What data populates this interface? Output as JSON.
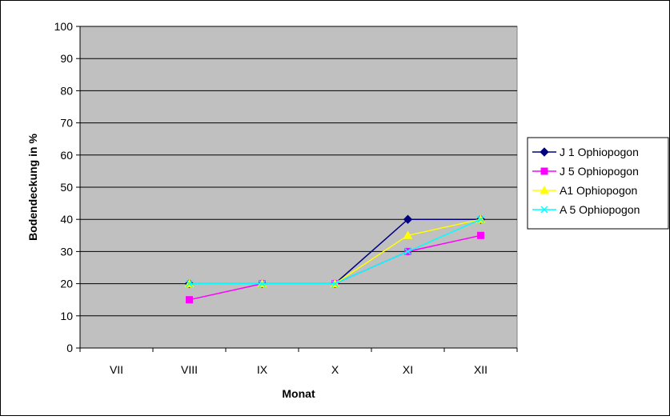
{
  "chart_data": {
    "type": "line",
    "title": "",
    "xlabel": "Monat",
    "ylabel": "Bodendeckung in %",
    "categories": [
      "VII",
      "VIII",
      "IX",
      "X",
      "XI",
      "XII"
    ],
    "ylim": [
      0,
      100
    ],
    "yticks": [
      0,
      10,
      20,
      30,
      40,
      50,
      60,
      70,
      80,
      90,
      100
    ],
    "grid": true,
    "legend_position": "right",
    "plot_background": "#c0c0c0",
    "series": [
      {
        "name": "J 1 Ophiopogon",
        "color": "#000080",
        "marker": "diamond",
        "values": [
          null,
          20,
          20,
          20,
          40,
          40
        ]
      },
      {
        "name": "J 5 Ophiopogon",
        "color": "#ff00ff",
        "marker": "square",
        "values": [
          null,
          15,
          20,
          20,
          30,
          35
        ]
      },
      {
        "name": "A1 Ophiopogon",
        "color": "#ffff00",
        "marker": "triangle",
        "values": [
          null,
          20,
          20,
          20,
          35,
          40
        ]
      },
      {
        "name": "A 5 Ophiopogon",
        "color": "#00ffff",
        "marker": "x",
        "values": [
          null,
          20,
          20,
          20,
          30,
          40
        ]
      }
    ]
  }
}
